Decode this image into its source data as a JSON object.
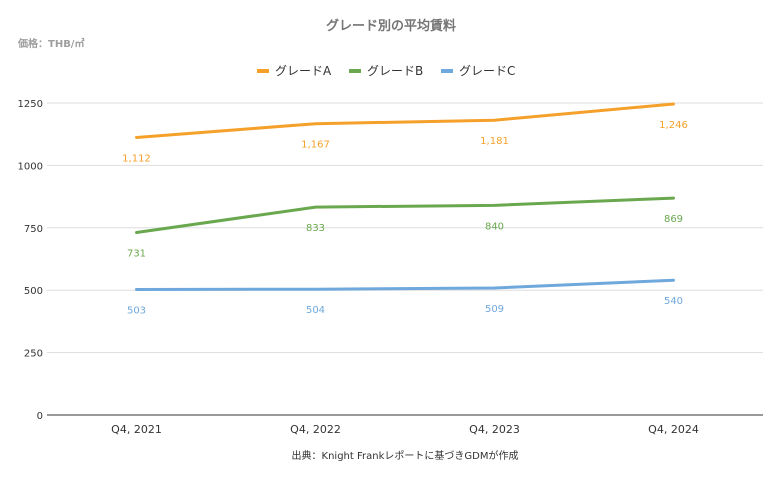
{
  "chart_data": {
    "type": "line",
    "title": "グレード別の平均賃料",
    "unit_label": "価格：THB/㎡",
    "source": "出典：Knight Frankレポートに基づきGDMが作成",
    "categories": [
      "Q4, 2021",
      "Q4, 2022",
      "Q4, 2023",
      "Q4, 2024"
    ],
    "ylim": [
      0,
      1250
    ],
    "yticks": [
      "0",
      "250",
      "500",
      "750",
      "1000",
      "1250"
    ],
    "grid": true,
    "legend": "top-center",
    "series": [
      {
        "name": "グレードA",
        "color": "#F5A02A",
        "values": [
          1112,
          1167,
          1181,
          1246
        ],
        "labels": [
          "1,112",
          "1,167",
          "1,181",
          "1,246"
        ]
      },
      {
        "name": "グレードB",
        "color": "#6AA84F",
        "values": [
          731,
          833,
          840,
          869
        ],
        "labels": [
          "731",
          "833",
          "840",
          "869"
        ]
      },
      {
        "name": "グレードC",
        "color": "#6FA8DC",
        "values": [
          503,
          504,
          509,
          540
        ],
        "labels": [
          "503",
          "504",
          "509",
          "540"
        ]
      }
    ]
  }
}
